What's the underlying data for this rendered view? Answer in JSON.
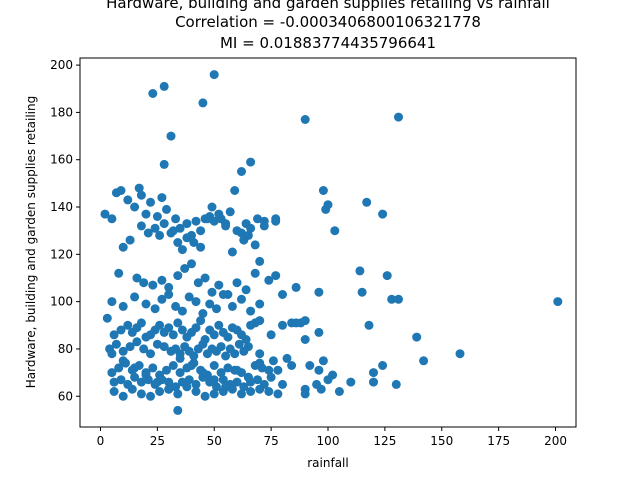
{
  "chart_data": {
    "type": "scatter",
    "title_lines": [
      "Hardware, building and garden supplies retailing vs rainfall",
      "Correlation = -0.0003406800106321778",
      "MI = 0.01883774435796641"
    ],
    "xlabel": "rainfall",
    "ylabel": "Hardware, building and garden supplies retailing",
    "xlim": [
      -9,
      209
    ],
    "ylim": [
      47,
      203
    ],
    "xticks": [
      0,
      25,
      50,
      75,
      100,
      125,
      150,
      175,
      200
    ],
    "yticks": [
      60,
      80,
      100,
      120,
      140,
      160,
      180,
      200
    ],
    "grid": false,
    "legend": "none",
    "marker_color": "#1f77b4",
    "x": [
      23,
      28,
      50,
      45,
      31,
      90,
      131,
      28,
      66,
      62,
      2,
      5,
      7,
      9,
      12,
      15,
      17,
      18,
      20,
      22,
      25,
      27,
      29,
      32,
      33,
      35,
      38,
      40,
      42,
      44,
      46,
      48,
      50,
      53,
      55,
      57,
      59,
      62,
      64,
      66,
      69,
      72,
      77,
      98,
      100,
      117,
      124,
      10,
      13,
      18,
      21,
      24,
      26,
      28,
      31,
      34,
      36,
      38,
      41,
      44,
      47,
      49,
      52,
      55,
      58,
      60,
      63,
      65,
      68,
      70,
      72,
      77,
      99,
      103,
      8,
      16,
      19,
      23,
      27,
      30,
      34,
      37,
      40,
      43,
      46,
      49,
      52,
      56,
      60,
      64,
      68,
      74,
      77,
      86,
      96,
      114,
      126,
      5,
      10,
      15,
      20,
      24,
      27,
      30,
      33,
      36,
      39,
      42,
      45,
      48,
      51,
      54,
      58,
      62,
      66,
      70,
      80,
      84,
      88,
      90,
      115,
      131,
      3,
      6,
      9,
      12,
      14,
      16,
      18,
      20,
      22,
      24,
      26,
      28,
      30,
      32,
      34,
      36,
      38,
      40,
      42,
      44,
      46,
      48,
      50,
      52,
      54,
      56,
      58,
      60,
      62,
      64,
      66,
      68,
      70,
      75,
      80,
      86,
      90,
      96,
      118,
      128,
      139,
      201,
      4,
      7,
      10,
      13,
      16,
      19,
      22,
      25,
      28,
      31,
      33,
      35,
      37,
      39,
      41,
      43,
      45,
      47,
      49,
      51,
      53,
      55,
      57,
      59,
      61,
      63,
      65,
      70,
      76,
      82,
      92,
      98,
      5,
      8,
      11,
      14,
      17,
      20,
      23,
      26,
      29,
      32,
      35,
      38,
      41,
      44,
      47,
      50,
      53,
      56,
      59,
      62,
      65,
      68,
      71,
      74,
      78,
      84,
      96,
      102,
      120,
      124,
      142,
      158,
      6,
      9,
      12,
      15,
      18,
      21,
      24,
      27,
      30,
      33,
      36,
      39,
      42,
      45,
      48,
      51,
      54,
      57,
      60,
      63,
      66,
      69,
      72,
      75,
      80,
      90,
      95,
      100,
      110,
      120,
      130,
      6,
      10,
      14,
      18,
      22,
      26,
      30,
      34,
      38,
      42,
      46,
      50,
      54,
      58,
      62,
      66,
      70,
      74,
      78,
      90,
      97,
      105,
      5,
      10,
      15,
      20,
      25,
      30,
      35,
      40,
      45,
      50,
      55,
      60,
      65,
      70,
      34
    ],
    "y": [
      188,
      191,
      196,
      184,
      170,
      177,
      178,
      158,
      159,
      155,
      137,
      135,
      146,
      147,
      143,
      140,
      148,
      145,
      137,
      142,
      136,
      144,
      139,
      130,
      135,
      131,
      133,
      128,
      134,
      130,
      135,
      136,
      134,
      135,
      133,
      138,
      147,
      129,
      133,
      131,
      135,
      134,
      134,
      147,
      141,
      142,
      137,
      123,
      126,
      132,
      129,
      131,
      128,
      133,
      129,
      125,
      122,
      127,
      125,
      123,
      135,
      140,
      137,
      132,
      121,
      130,
      126,
      128,
      124,
      117,
      132,
      135,
      139,
      130,
      112,
      110,
      108,
      107,
      109,
      106,
      111,
      114,
      116,
      108,
      110,
      104,
      107,
      103,
      108,
      105,
      112,
      109,
      111,
      106,
      104,
      113,
      111,
      100,
      98,
      102,
      99,
      97,
      101,
      103,
      98,
      96,
      102,
      100,
      95,
      99,
      97,
      103,
      98,
      101,
      96,
      99,
      103,
      91,
      91,
      92,
      104,
      101,
      93,
      86,
      88,
      90,
      87,
      89,
      91,
      85,
      86,
      88,
      90,
      87,
      89,
      86,
      91,
      88,
      85,
      87,
      89,
      92,
      84,
      88,
      86,
      90,
      87,
      85,
      89,
      88,
      86,
      84,
      90,
      91,
      92,
      86,
      90,
      91,
      84,
      87,
      90,
      101,
      85,
      100,
      80,
      82,
      79,
      81,
      83,
      80,
      78,
      82,
      81,
      79,
      80,
      78,
      81,
      79,
      77,
      80,
      82,
      78,
      80,
      79,
      81,
      77,
      80,
      78,
      82,
      79,
      81,
      78,
      75,
      76,
      73,
      75,
      70,
      72,
      74,
      71,
      73,
      70,
      72,
      69,
      71,
      73,
      70,
      72,
      74,
      71,
      69,
      73,
      70,
      72,
      71,
      70,
      68,
      73,
      72,
      71,
      71,
      73,
      71,
      69,
      70,
      73,
      75,
      78,
      66,
      67,
      65,
      68,
      66,
      67,
      65,
      67,
      66,
      64,
      66,
      67,
      65,
      68,
      66,
      64,
      67,
      65,
      66,
      64,
      66,
      67,
      65,
      68,
      65,
      63,
      65,
      67,
      66,
      66,
      65,
      62,
      60,
      63,
      61,
      60,
      62,
      63,
      61,
      64,
      62,
      60,
      61,
      62,
      63,
      61,
      62,
      63,
      62,
      61,
      61,
      63,
      62,
      78,
      75,
      72,
      69,
      66,
      63,
      76,
      73,
      70,
      67,
      64,
      71,
      68,
      74,
      54
    ]
  }
}
